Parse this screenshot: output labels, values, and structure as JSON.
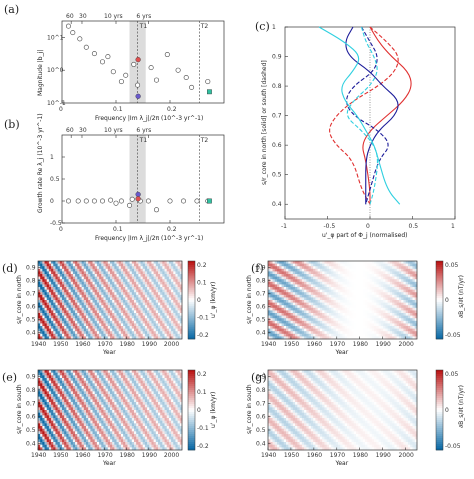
{
  "figure": {
    "panels": {
      "a": {
        "label": "(a)",
        "ylabel": "Magnitude |b_j|",
        "xlabel": "Frequency |Im λ_j|/2π (10^-3 yr^-1)",
        "top_labels": [
          "60",
          "30",
          "10 yrs",
          "6 yrs",
          "T1",
          "T2"
        ]
      },
      "b": {
        "label": "(b)",
        "ylabel": "Growth rate Re λ_j (10^-3 yr^-1)",
        "xlabel": "Frequency |Im λ_j|/2π (10^-3 yr^-1)",
        "top_labels": [
          "60",
          "30",
          "10 yrs",
          "6 yrs",
          "T1",
          "T2"
        ]
      },
      "c": {
        "label": "(c)",
        "ylabel": "s/r_core in north [solid] or south [dashed]",
        "xlabel": "u'_φ part of Φ_j (normalised)"
      },
      "d": {
        "label": "(d)",
        "ylabel": "s/r_core in north",
        "xlabel": "Year",
        "cbar_label": "u'_φ (km/yr)",
        "cbar_ticks": [
          "0.2",
          "0.1",
          "0",
          "-0.1",
          "-0.2"
        ]
      },
      "e": {
        "label": "(e)",
        "ylabel": "s/r_core in south",
        "xlabel": "Year",
        "cbar_label": "u'_φ (km/yr)",
        "cbar_ticks": [
          "0.2",
          "0.1",
          "0",
          "-0.1",
          "-0.2"
        ]
      },
      "f": {
        "label": "(f)",
        "ylabel": "s/r_core in north",
        "xlabel": "Year",
        "cbar_label": "∂B_s/∂t (nT/yr)",
        "cbar_ticks": [
          "0.05",
          "0",
          "-0.05"
        ]
      },
      "g": {
        "label": "(g)",
        "ylabel": "s/r_core in south",
        "xlabel": "Year",
        "cbar_label": "∂B_s/∂t (nT/yr)",
        "cbar_ticks": [
          "0.05",
          "0",
          "-0.05"
        ]
      }
    }
  },
  "chart_data": [
    {
      "type": "scatter",
      "panel": "a",
      "xlabel": "Frequency |Im λ_j|/2π (10^-3 yr^-1)",
      "ylabel": "Magnitude |b_j|",
      "xlim": [
        0,
        0.3
      ],
      "ylim_log": [
        -1,
        1.5
      ],
      "scale": "log",
      "x_ticks": [
        "0",
        "0.1",
        "0.2"
      ],
      "y_ticks": [
        "10^-1",
        "10^0",
        "10^1"
      ],
      "x_top_ticks": [
        0.0167,
        0.0333,
        0.1,
        0.1667
      ],
      "shade": [
        0.125,
        0.155
      ],
      "vlines": [
        0.14,
        0.255
      ],
      "points": [
        {
          "x": 0.012,
          "y": 22
        },
        {
          "x": 0.02,
          "y": 14
        },
        {
          "x": 0.033,
          "y": 9
        },
        {
          "x": 0.045,
          "y": 5
        },
        {
          "x": 0.06,
          "y": 3.2
        },
        {
          "x": 0.075,
          "y": 1.8
        },
        {
          "x": 0.085,
          "y": 2.6
        },
        {
          "x": 0.095,
          "y": 0.9
        },
        {
          "x": 0.11,
          "y": 0.45
        },
        {
          "x": 0.118,
          "y": 0.7
        },
        {
          "x": 0.133,
          "y": 1.5
        },
        {
          "x": 0.14,
          "y": 0.35
        },
        {
          "x": 0.165,
          "y": 1.2
        },
        {
          "x": 0.175,
          "y": 0.5
        },
        {
          "x": 0.195,
          "y": 3.0
        },
        {
          "x": 0.215,
          "y": 1.0
        },
        {
          "x": 0.23,
          "y": 0.6
        },
        {
          "x": 0.24,
          "y": 0.3
        },
        {
          "x": 0.27,
          "y": 0.45
        }
      ],
      "highlight": [
        {
          "x": 0.141,
          "y": 2.1,
          "color": "#e05050"
        },
        {
          "x": 0.141,
          "y": 0.16,
          "color": "#6a5acd"
        },
        {
          "x": 0.273,
          "y": 0.22,
          "color": "#30c0a0"
        }
      ]
    },
    {
      "type": "scatter",
      "panel": "b",
      "xlabel": "Frequency |Im λ_j|/2π (10^-3 yr^-1)",
      "ylabel": "Growth rate Re λ_j (10^-3 yr^-1)",
      "xlim": [
        0,
        0.3
      ],
      "ylim": [
        -0.5,
        1.5
      ],
      "x_ticks": [
        "0",
        "0.1",
        "0.2"
      ],
      "y_ticks": [
        "1",
        "0.5",
        "0",
        "-0.5"
      ],
      "shade": [
        0.125,
        0.155
      ],
      "vlines": [
        0.14,
        0.255
      ],
      "points": [
        {
          "x": 0.012,
          "y": 0.0
        },
        {
          "x": 0.03,
          "y": 0.0
        },
        {
          "x": 0.045,
          "y": 0.0
        },
        {
          "x": 0.06,
          "y": 0.0
        },
        {
          "x": 0.075,
          "y": 0.0
        },
        {
          "x": 0.09,
          "y": 0.02
        },
        {
          "x": 0.1,
          "y": -0.05
        },
        {
          "x": 0.11,
          "y": 0.0
        },
        {
          "x": 0.125,
          "y": -0.1
        },
        {
          "x": 0.13,
          "y": 0.04
        },
        {
          "x": 0.145,
          "y": 0.0
        },
        {
          "x": 0.16,
          "y": 0.0
        },
        {
          "x": 0.175,
          "y": -0.2
        },
        {
          "x": 0.2,
          "y": 0.0
        },
        {
          "x": 0.225,
          "y": 0.0
        },
        {
          "x": 0.25,
          "y": 0.0
        },
        {
          "x": 0.27,
          "y": 0.0
        }
      ],
      "highlight": [
        {
          "x": 0.141,
          "y": 0.15,
          "color": "#6a5acd"
        },
        {
          "x": 0.141,
          "y": 0.05,
          "color": "#e05050"
        },
        {
          "x": 0.273,
          "y": 0.0,
          "color": "#30c0a0"
        }
      ]
    },
    {
      "type": "line",
      "panel": "c",
      "xlabel": "u'_φ part of Φ_j (normalised)",
      "ylabel": "s/r_core in north [solid] or south [dashed]",
      "xlim": [
        -1,
        1
      ],
      "ylim": [
        0.35,
        1.0
      ],
      "x_ticks": [
        "-1",
        "-0.5",
        "0",
        "0.5",
        "1"
      ],
      "y_ticks": [
        "0.4",
        "0.5",
        "0.6",
        "0.7",
        "0.8",
        "0.9",
        "1"
      ],
      "series": [
        {
          "color": "#e03030",
          "dash": false,
          "x": [
            0.0,
            0.1,
            0.25,
            0.45,
            0.5,
            0.4,
            0.2,
            0.0,
            -0.1,
            -0.05,
            0.0,
            0.0
          ],
          "y": [
            1.0,
            0.95,
            0.9,
            0.85,
            0.8,
            0.75,
            0.7,
            0.65,
            0.6,
            0.55,
            0.45,
            0.4
          ]
        },
        {
          "color": "#e03030",
          "dash": true,
          "x": [
            0.0,
            0.2,
            0.35,
            0.3,
            0.1,
            -0.2,
            -0.4,
            -0.5,
            -0.4,
            -0.2,
            -0.1,
            0.0
          ],
          "y": [
            1.0,
            0.95,
            0.9,
            0.85,
            0.8,
            0.75,
            0.7,
            0.65,
            0.6,
            0.55,
            0.45,
            0.4
          ]
        },
        {
          "color": "#1c1c9a",
          "dash": false,
          "x": [
            -0.2,
            -0.3,
            -0.25,
            0.0,
            0.15,
            0.35,
            0.3,
            0.1,
            0.0,
            -0.05,
            -0.05,
            -0.05
          ],
          "y": [
            1.0,
            0.95,
            0.9,
            0.85,
            0.8,
            0.75,
            0.7,
            0.65,
            0.6,
            0.55,
            0.45,
            0.4
          ]
        },
        {
          "color": "#1c1c9a",
          "dash": true,
          "x": [
            -0.1,
            0.0,
            0.1,
            0.05,
            -0.2,
            -0.3,
            -0.2,
            0.1,
            0.25,
            0.1,
            0.0,
            -0.05
          ],
          "y": [
            1.0,
            0.95,
            0.9,
            0.85,
            0.8,
            0.75,
            0.7,
            0.65,
            0.6,
            0.55,
            0.45,
            0.4
          ]
        },
        {
          "color": "#30d0e0",
          "dash": false,
          "x": [
            -0.6,
            -0.3,
            -0.1,
            -0.2,
            -0.35,
            -0.3,
            -0.15,
            -0.05,
            0.05,
            0.1,
            0.2,
            0.35
          ],
          "y": [
            1.0,
            0.95,
            0.9,
            0.85,
            0.8,
            0.75,
            0.7,
            0.65,
            0.6,
            0.55,
            0.45,
            0.4
          ]
        },
        {
          "color": "#30d0e0",
          "dash": true,
          "x": [
            -0.1,
            -0.05,
            0.05,
            0.1,
            0.0,
            -0.2,
            -0.3,
            -0.1,
            0.05,
            0.1,
            0.05,
            0.0
          ],
          "y": [
            1.0,
            0.95,
            0.9,
            0.85,
            0.8,
            0.75,
            0.7,
            0.65,
            0.6,
            0.55,
            0.45,
            0.4
          ]
        }
      ]
    },
    {
      "type": "heatmap",
      "panel": "d",
      "xlabel": "Year",
      "ylabel": "s/r_core in north",
      "xlim": [
        1940,
        2005
      ],
      "ylim": [
        0.35,
        0.95
      ],
      "x_ticks": [
        "1940",
        "1950",
        "1960",
        "1970",
        "1980",
        "1990",
        "2000"
      ],
      "y_ticks": [
        "0.4",
        "0.5",
        "0.6",
        "0.7",
        "0.8",
        "0.9"
      ],
      "clim": [
        -0.2,
        0.2
      ],
      "colormap": "blue-white-red",
      "pattern": "diagonal-bands",
      "amp_decay": true
    },
    {
      "type": "heatmap",
      "panel": "e",
      "xlabel": "Year",
      "ylabel": "s/r_core in south",
      "xlim": [
        1940,
        2005
      ],
      "ylim": [
        0.35,
        0.95
      ],
      "x_ticks": [
        "1940",
        "1950",
        "1960",
        "1970",
        "1980",
        "1990",
        "2000"
      ],
      "y_ticks": [
        "0.4",
        "0.5",
        "0.6",
        "0.7",
        "0.8",
        "0.9"
      ],
      "clim": [
        -0.2,
        0.2
      ],
      "colormap": "blue-white-red",
      "pattern": "diagonal-bands",
      "amp_decay": true
    },
    {
      "type": "heatmap",
      "panel": "f",
      "xlabel": "Year",
      "ylabel": "s/r_core in north",
      "xlim": [
        1940,
        2005
      ],
      "ylim": [
        0.35,
        0.95
      ],
      "x_ticks": [
        "1940",
        "1950",
        "1960",
        "1970",
        "1980",
        "1990",
        "2000"
      ],
      "y_ticks": [
        "0.4",
        "0.5",
        "0.6",
        "0.7",
        "0.8",
        "0.9"
      ],
      "clim": [
        -0.07,
        0.07
      ],
      "colormap": "blue-white-red",
      "pattern": "horizontal-bands",
      "amp_decay": false
    },
    {
      "type": "heatmap",
      "panel": "g",
      "xlabel": "Year",
      "ylabel": "s/r_core in south",
      "xlim": [
        1940,
        2005
      ],
      "ylim": [
        0.35,
        0.95
      ],
      "x_ticks": [
        "1940",
        "1950",
        "1960",
        "1970",
        "1980",
        "1990",
        "2000"
      ],
      "y_ticks": [
        "0.4",
        "0.5",
        "0.6",
        "0.7",
        "0.8",
        "0.9"
      ],
      "clim": [
        -0.07,
        0.07
      ],
      "colormap": "blue-white-red",
      "pattern": "weak-bands",
      "amp_decay": false
    }
  ]
}
